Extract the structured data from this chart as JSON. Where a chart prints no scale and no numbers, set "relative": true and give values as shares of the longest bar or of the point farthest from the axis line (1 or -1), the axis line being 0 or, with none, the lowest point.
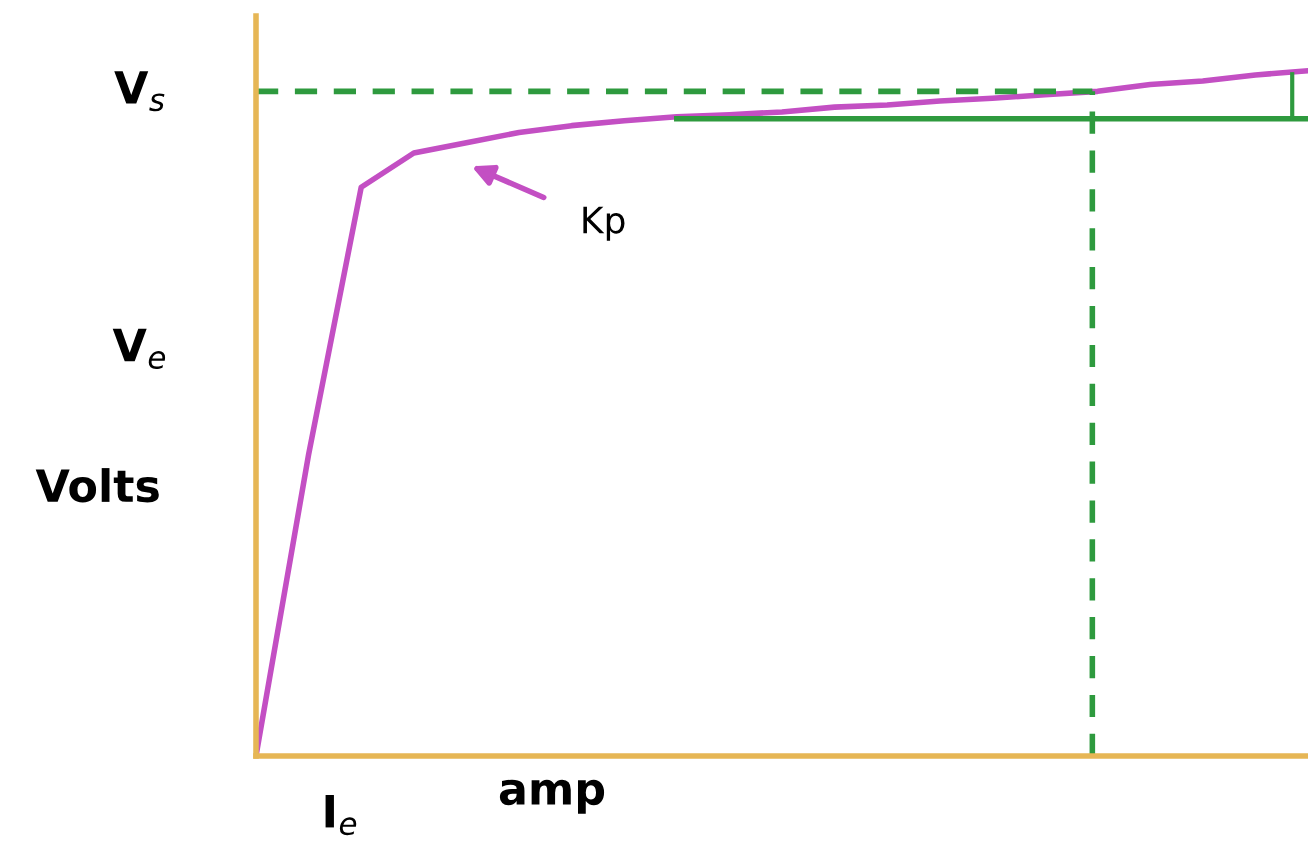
{
  "chart_data": {
    "type": "line",
    "relative": true,
    "xlabel": "amp",
    "ylabel": "Volts",
    "categories": [
      null,
      null,
      null,
      null,
      null,
      null,
      null,
      null,
      null,
      null,
      null,
      null,
      null,
      null,
      null,
      null,
      null,
      null,
      null,
      null,
      null
    ],
    "series": [
      {
        "color": "#c34fc3",
        "values": [
          0,
          0.44,
          0.83,
          0.88,
          0.895,
          0.91,
          0.92,
          0.927,
          0.933,
          0.936,
          0.94,
          0.947,
          0.95,
          0.956,
          0.96,
          0.965,
          0.97,
          0.98,
          0.985,
          0.994,
          1.0
        ]
      },
      {
        "color": "#2e9a3e",
        "line_style": "solid",
        "values": [
          null,
          null,
          null,
          null,
          null,
          null,
          null,
          null,
          0.93,
          0.93,
          0.93,
          0.93,
          0.93,
          0.93,
          0.93,
          0.93,
          0.93,
          0.93,
          0.93,
          0.93,
          0.93
        ]
      }
    ],
    "ref_lines": [
      {
        "axis": "y",
        "value": 0.97,
        "label": "V$_{s}$",
        "color": "#2e9a3e",
        "line_style": "dashed"
      }
    ],
    "annotations": [
      "V$_{e}$",
      "I$_{e}$",
      "Kp"
    ],
    "marker": "none",
    "line_style": "solid",
    "grid": false,
    "legend": false
  }
}
